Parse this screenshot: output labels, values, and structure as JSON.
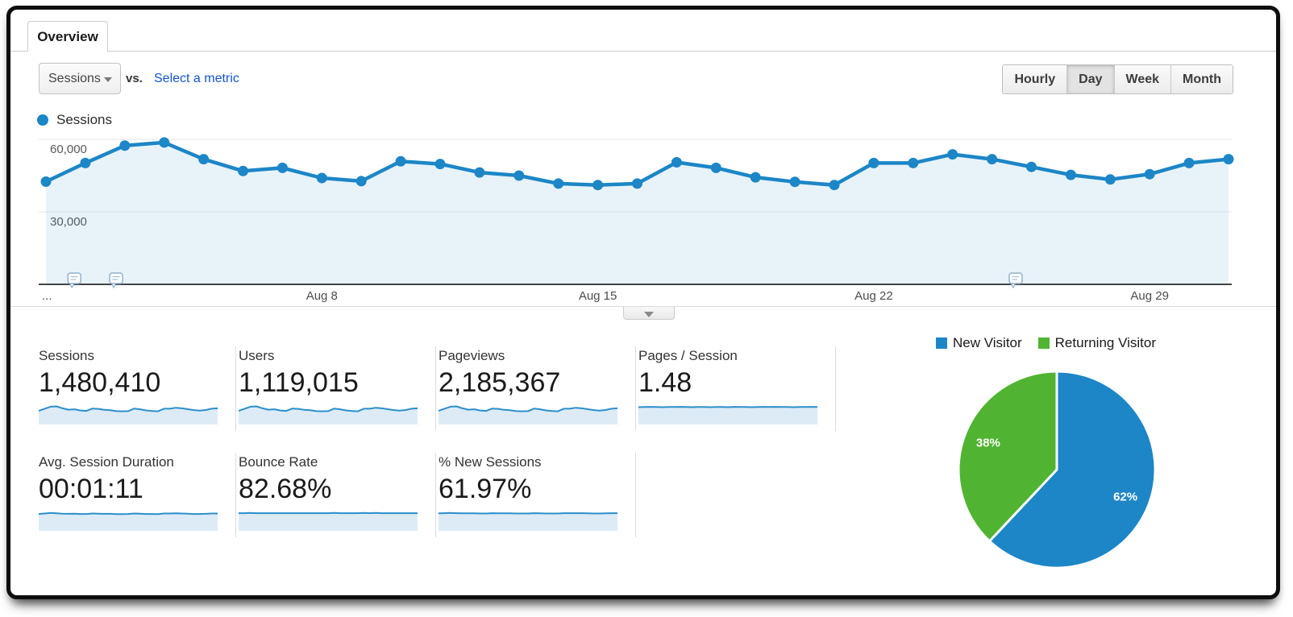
{
  "colors": {
    "series_blue": "#1c86c7",
    "pie_green": "#50b432",
    "area_fill": "rgba(28,134,199,0.10)",
    "spark_fill": "#ddebf7",
    "link_blue": "#1155cc"
  },
  "tab": {
    "label": "Overview"
  },
  "controls": {
    "metric_selector": {
      "value": "Sessions"
    },
    "vs_label": "vs.",
    "select_metric_label": "Select a metric",
    "granularity": [
      {
        "label": "Hourly",
        "active": false
      },
      {
        "label": "Day",
        "active": true
      },
      {
        "label": "Week",
        "active": false
      },
      {
        "label": "Month",
        "active": false
      }
    ]
  },
  "chart_data": [
    {
      "type": "line",
      "name": "sessions-over-time",
      "legend": {
        "label": "Sessions"
      },
      "x": [
        "Aug 1",
        "Aug 2",
        "Aug 3",
        "Aug 4",
        "Aug 5",
        "Aug 6",
        "Aug 7",
        "Aug 8",
        "Aug 9",
        "Aug 10",
        "Aug 11",
        "Aug 12",
        "Aug 13",
        "Aug 14",
        "Aug 15",
        "Aug 16",
        "Aug 17",
        "Aug 18",
        "Aug 19",
        "Aug 20",
        "Aug 21",
        "Aug 22",
        "Aug 23",
        "Aug 24",
        "Aug 25",
        "Aug 26",
        "Aug 27",
        "Aug 28",
        "Aug 29",
        "Aug 30",
        "Aug 31"
      ],
      "series": [
        {
          "name": "Sessions",
          "values": [
            42500,
            50200,
            57400,
            58700,
            51800,
            46900,
            48200,
            44000,
            42700,
            50900,
            49800,
            46300,
            45000,
            41700,
            41100,
            41700,
            50500,
            48200,
            44300,
            42400,
            41100,
            50200,
            50200,
            53800,
            51800,
            48600,
            45300,
            43400,
            45600,
            50200,
            51800
          ]
        }
      ],
      "ylim": [
        0,
        64000
      ],
      "y_ticks": [
        {
          "value": 60000,
          "label": "60,000"
        },
        {
          "value": 30000,
          "label": "30,000"
        }
      ],
      "x_ticks": [
        {
          "day": 8,
          "label": "Aug 8"
        },
        {
          "day": 15,
          "label": "Aug 15"
        },
        {
          "day": 22,
          "label": "Aug 22"
        },
        {
          "day": 29,
          "label": "Aug 29"
        }
      ],
      "overflow_left_label": "...",
      "annotations": {
        "x_day_offsets": [
          0.72,
          1.78,
          24.6
        ]
      },
      "grid": true,
      "legend_position": "top-left"
    },
    {
      "type": "pie",
      "name": "visitor-type-share",
      "legend_position": "top",
      "slices": [
        {
          "label": "New Visitor",
          "pct": 62,
          "pct_label": "62%",
          "color": "#1c86c7"
        },
        {
          "label": "Returning Visitor",
          "pct": 38,
          "pct_label": "38%",
          "color": "#50b432"
        }
      ]
    }
  ],
  "metrics": {
    "row1": [
      {
        "label": "Sessions",
        "value": "1,480,410",
        "spark": "sessions-trend"
      },
      {
        "label": "Users",
        "value": "1,119,015",
        "spark": "sessions-trend"
      },
      {
        "label": "Pageviews",
        "value": "2,185,367",
        "spark": "sessions-trend"
      },
      {
        "label": "Pages / Session",
        "value": "1.48",
        "spark_values": [
          0.93,
          0.94,
          0.95,
          0.94,
          0.93,
          0.94,
          0.94,
          0.95,
          0.94,
          0.93,
          0.94,
          0.94,
          0.93,
          0.94,
          0.94,
          0.93,
          0.95,
          0.94,
          0.94,
          0.93,
          0.94,
          0.95,
          0.94,
          0.95,
          0.94,
          0.94,
          0.93,
          0.94,
          0.94,
          0.95,
          0.94
        ]
      }
    ],
    "row2": [
      {
        "label": "Avg. Session Duration",
        "value": "00:01:11",
        "spark_values": [
          0.9,
          0.93,
          0.96,
          0.94,
          0.92,
          0.91,
          0.92,
          0.9,
          0.9,
          0.93,
          0.92,
          0.91,
          0.91,
          0.89,
          0.89,
          0.9,
          0.93,
          0.92,
          0.9,
          0.9,
          0.89,
          0.93,
          0.93,
          0.94,
          0.93,
          0.92,
          0.9,
          0.9,
          0.91,
          0.93,
          0.93
        ]
      },
      {
        "label": "Bounce Rate",
        "value": "82.68%",
        "spark_values": [
          0.95,
          0.95,
          0.96,
          0.95,
          0.95,
          0.95,
          0.95,
          0.95,
          0.95,
          0.95,
          0.95,
          0.95,
          0.95,
          0.95,
          0.95,
          0.95,
          0.96,
          0.95,
          0.95,
          0.95,
          0.95,
          0.96,
          0.95,
          0.96,
          0.95,
          0.95,
          0.95,
          0.95,
          0.95,
          0.95,
          0.95
        ]
      },
      {
        "label": "% New Sessions",
        "value": "61.97%",
        "spark_values": [
          0.94,
          0.95,
          0.96,
          0.95,
          0.94,
          0.94,
          0.94,
          0.93,
          0.93,
          0.95,
          0.94,
          0.94,
          0.94,
          0.93,
          0.93,
          0.93,
          0.95,
          0.94,
          0.93,
          0.93,
          0.93,
          0.95,
          0.95,
          0.95,
          0.95,
          0.94,
          0.93,
          0.93,
          0.94,
          0.95,
          0.95
        ]
      }
    ]
  }
}
